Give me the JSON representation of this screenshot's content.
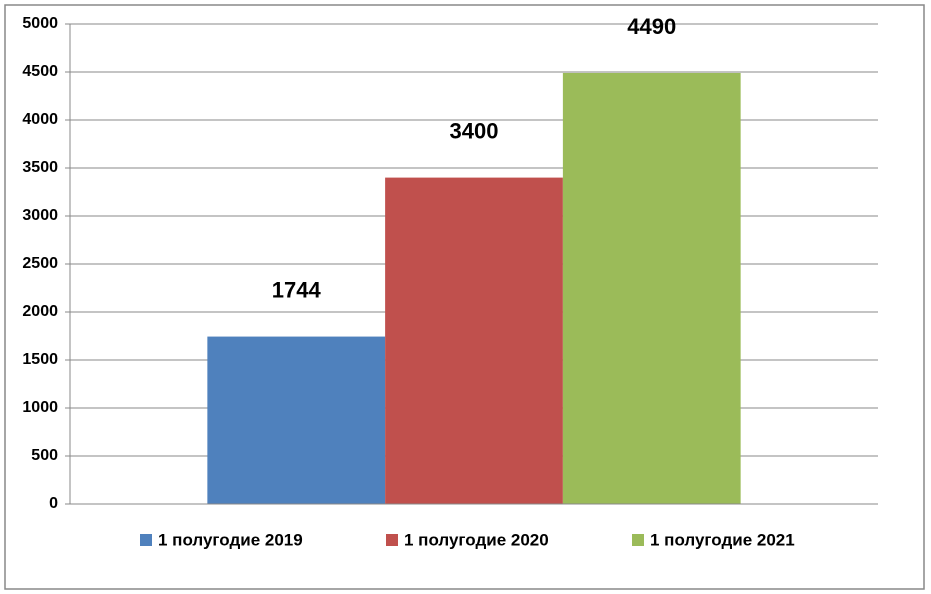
{
  "chart_data": {
    "type": "bar",
    "categories": [
      null
    ],
    "series": [
      {
        "name": "1 полугодие 2019",
        "color": "#4f81bd",
        "values": [
          1744
        ]
      },
      {
        "name": "1 полугодие 2020",
        "color": "#c0504d",
        "values": [
          3400
        ]
      },
      {
        "name": "1 полугодие 2021",
        "color": "#9bbb59",
        "values": [
          4490
        ]
      }
    ],
    "ylim": [
      0,
      5000
    ],
    "yticks": [
      0,
      500,
      1000,
      1500,
      2000,
      2500,
      3000,
      3500,
      4000,
      4500,
      5000
    ],
    "grid": true,
    "legend": "bottom",
    "data_labels": true
  }
}
